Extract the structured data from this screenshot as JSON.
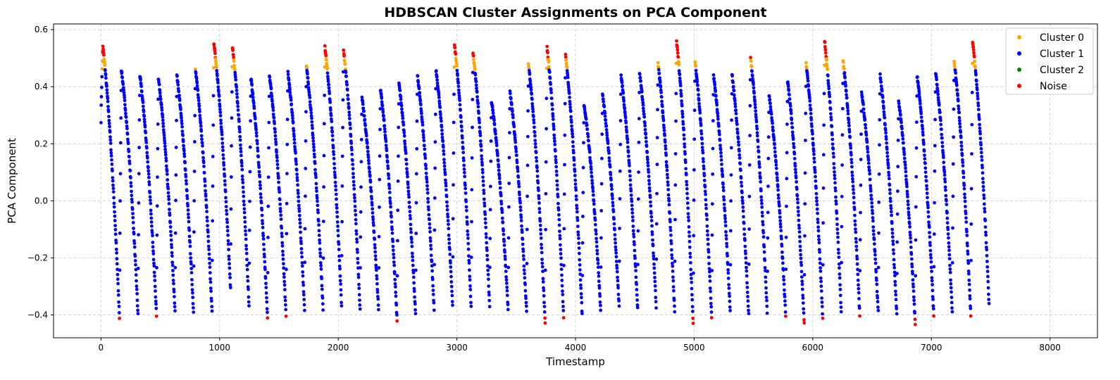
{
  "chart_data": {
    "type": "scatter",
    "title": "HDBSCAN Cluster Assignments on PCA Component",
    "xlabel": "Timestamp",
    "ylabel": "PCA Component",
    "xlim": [
      -400,
      8400
    ],
    "ylim": [
      -0.48,
      0.62
    ],
    "xticks": [
      0,
      1000,
      2000,
      3000,
      4000,
      5000,
      6000,
      7000,
      8000
    ],
    "yticks": [
      -0.4,
      -0.2,
      0.0,
      0.2,
      0.4,
      0.6
    ],
    "xtick_labels": [
      "0",
      "1000",
      "2000",
      "3000",
      "4000",
      "5000",
      "6000",
      "7000",
      "8000"
    ],
    "ytick_labels": [
      "−0.4",
      "−0.2",
      "0.0",
      "0.2",
      "0.4",
      "0.6"
    ],
    "grid": true,
    "legend_position": "top-right",
    "series": [
      {
        "name": "Cluster 0",
        "color": "#ffa500"
      },
      {
        "name": "Cluster 1",
        "color": "#0000ff"
      },
      {
        "name": "Cluster 2",
        "color": "#008000"
      },
      {
        "name": "Noise",
        "color": "#ff0000"
      }
    ],
    "cycle_length": 156,
    "n_points": 7500,
    "cycle_peaks": [
      0.54,
      0.46,
      0.44,
      0.43,
      0.44,
      0.46,
      0.55,
      0.54,
      0.43,
      0.44,
      0.45,
      0.47,
      0.54,
      0.53,
      0.36,
      0.39,
      0.41,
      0.44,
      0.46,
      0.55,
      0.52,
      0.35,
      0.38,
      0.48,
      0.54,
      0.51,
      0.34,
      0.37,
      0.44,
      0.45,
      0.48,
      0.56,
      0.49,
      0.44,
      0.44,
      0.5,
      0.37,
      0.42,
      0.48,
      0.56,
      0.49,
      0.38,
      0.44,
      0.35,
      0.44,
      0.45,
      0.49,
      0.56
    ],
    "cycle_troughs": [
      -0.41,
      -0.4,
      -0.4,
      -0.39,
      -0.39,
      -0.39,
      -0.31,
      -0.37,
      -0.41,
      -0.4,
      -0.38,
      -0.38,
      -0.37,
      -0.38,
      -0.38,
      -0.42,
      -0.4,
      -0.38,
      -0.37,
      -0.37,
      -0.37,
      -0.38,
      -0.39,
      -0.43,
      -0.41,
      -0.4,
      -0.38,
      -0.37,
      -0.38,
      -0.37,
      -0.39,
      -0.43,
      -0.41,
      -0.39,
      -0.4,
      -0.39,
      -0.4,
      -0.43,
      -0.41,
      -0.39,
      -0.4,
      -0.39,
      -0.4,
      -0.43,
      -0.4,
      -0.39,
      -0.4,
      -0.38
    ]
  }
}
